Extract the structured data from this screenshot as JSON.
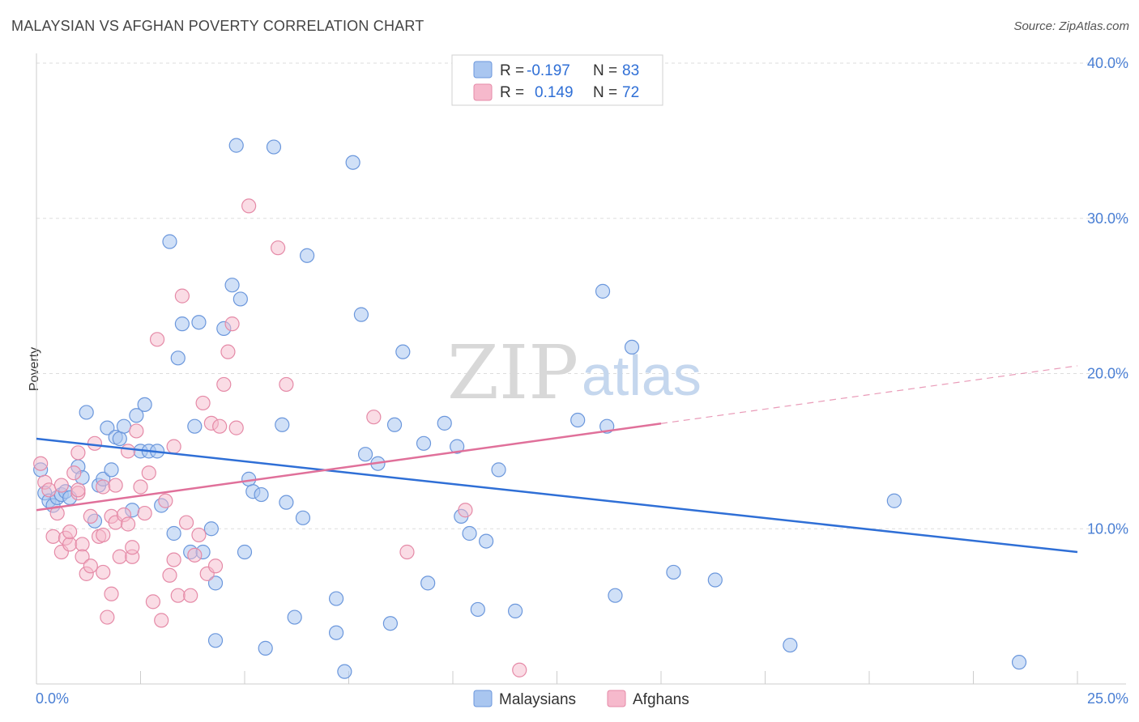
{
  "title": "MALAYSIAN VS AFGHAN POVERTY CORRELATION CHART",
  "source": "Source: ZipAtlas.com",
  "watermark": {
    "zip": "ZIP",
    "atlas": "atlas"
  },
  "colors": {
    "malaysians_fill": "#a9c6f0",
    "malaysians_stroke": "#6b97dc",
    "malaysians_line": "#2f6fd6",
    "afghans_fill": "#f6b9cc",
    "afghans_stroke": "#e58aa7",
    "afghans_line": "#e0709a",
    "grid": "#dddddd",
    "axis_text": "#4a7fd4"
  },
  "legend": {
    "rows": [
      {
        "r_label": "R =",
        "r_value": "-0.197",
        "n_label": "N =",
        "n_value": "83"
      },
      {
        "r_label": "R =",
        "r_value": "0.149",
        "n_label": "N =",
        "n_value": "72"
      }
    ]
  },
  "chart_data": {
    "type": "scatter",
    "title": "MALAYSIAN VS AFGHAN POVERTY CORRELATION CHART",
    "xlabel": "",
    "ylabel": "Poverty",
    "xlim": [
      0,
      25
    ],
    "ylim": [
      0,
      40
    ],
    "x_tick_labels": [
      "0.0%",
      "25.0%"
    ],
    "y_tick_labels": [
      "10.0%",
      "20.0%",
      "30.0%",
      "40.0%"
    ],
    "y_tick_values": [
      10,
      20,
      30,
      40
    ],
    "grid": true,
    "legend_position": "top-center",
    "series": [
      {
        "name": "Malaysians",
        "r": -0.197,
        "n": 83,
        "trend": {
          "x": [
            0,
            25
          ],
          "y": [
            15.8,
            8.5
          ],
          "dashed_from": null
        },
        "points": [
          [
            0.1,
            13.8
          ],
          [
            0.2,
            12.3
          ],
          [
            0.3,
            11.8
          ],
          [
            0.4,
            11.5
          ],
          [
            0.5,
            12.0
          ],
          [
            0.6,
            12.2
          ],
          [
            0.7,
            12.4
          ],
          [
            0.8,
            12.0
          ],
          [
            1.0,
            14.0
          ],
          [
            1.1,
            13.3
          ],
          [
            1.2,
            17.5
          ],
          [
            1.4,
            10.5
          ],
          [
            1.5,
            12.8
          ],
          [
            1.6,
            13.2
          ],
          [
            1.7,
            16.5
          ],
          [
            1.8,
            13.8
          ],
          [
            1.9,
            15.9
          ],
          [
            2.0,
            15.8
          ],
          [
            2.1,
            16.6
          ],
          [
            2.3,
            11.2
          ],
          [
            2.4,
            17.3
          ],
          [
            2.5,
            15.0
          ],
          [
            2.6,
            18.0
          ],
          [
            2.7,
            15.0
          ],
          [
            2.9,
            15.0
          ],
          [
            3.0,
            11.5
          ],
          [
            3.2,
            28.5
          ],
          [
            3.3,
            9.7
          ],
          [
            3.4,
            21.0
          ],
          [
            3.5,
            23.2
          ],
          [
            3.7,
            8.5
          ],
          [
            3.8,
            16.6
          ],
          [
            3.9,
            23.3
          ],
          [
            4.0,
            8.5
          ],
          [
            4.2,
            10.0
          ],
          [
            4.3,
            6.5
          ],
          [
            4.3,
            2.8
          ],
          [
            4.5,
            22.9
          ],
          [
            4.7,
            25.7
          ],
          [
            4.8,
            34.7
          ],
          [
            4.9,
            24.8
          ],
          [
            5.0,
            8.5
          ],
          [
            5.1,
            13.2
          ],
          [
            5.2,
            12.4
          ],
          [
            5.4,
            12.2
          ],
          [
            5.5,
            2.3
          ],
          [
            5.7,
            34.6
          ],
          [
            5.9,
            16.7
          ],
          [
            6.0,
            11.7
          ],
          [
            6.2,
            4.3
          ],
          [
            6.4,
            10.7
          ],
          [
            6.5,
            27.6
          ],
          [
            7.2,
            5.5
          ],
          [
            7.2,
            3.3
          ],
          [
            7.4,
            0.8
          ],
          [
            7.6,
            33.6
          ],
          [
            7.8,
            23.8
          ],
          [
            7.9,
            14.8
          ],
          [
            8.2,
            14.2
          ],
          [
            8.5,
            3.9
          ],
          [
            8.6,
            16.7
          ],
          [
            8.8,
            21.4
          ],
          [
            9.3,
            15.5
          ],
          [
            9.4,
            6.5
          ],
          [
            9.8,
            16.8
          ],
          [
            10.1,
            15.3
          ],
          [
            10.2,
            10.8
          ],
          [
            10.4,
            9.7
          ],
          [
            10.6,
            4.8
          ],
          [
            10.8,
            9.2
          ],
          [
            11.1,
            13.8
          ],
          [
            11.5,
            4.7
          ],
          [
            13.0,
            17.0
          ],
          [
            13.6,
            25.3
          ],
          [
            13.7,
            16.6
          ],
          [
            13.9,
            5.7
          ],
          [
            14.3,
            21.7
          ],
          [
            15.3,
            7.2
          ],
          [
            16.3,
            6.7
          ],
          [
            18.1,
            2.5
          ],
          [
            20.6,
            11.8
          ],
          [
            23.6,
            1.4
          ]
        ]
      },
      {
        "name": "Afghans",
        "r": 0.149,
        "n": 72,
        "trend": {
          "x": [
            0,
            25
          ],
          "y": [
            11.2,
            20.5
          ],
          "dashed_from": 15
        },
        "points": [
          [
            0.1,
            14.2
          ],
          [
            0.2,
            13.0
          ],
          [
            0.3,
            12.5
          ],
          [
            0.4,
            9.5
          ],
          [
            0.5,
            11.0
          ],
          [
            0.6,
            12.8
          ],
          [
            0.6,
            8.5
          ],
          [
            0.7,
            9.4
          ],
          [
            0.8,
            9.0
          ],
          [
            0.8,
            9.8
          ],
          [
            0.9,
            13.6
          ],
          [
            1.0,
            14.9
          ],
          [
            1.0,
            12.3
          ],
          [
            1.0,
            12.5
          ],
          [
            1.1,
            9.0
          ],
          [
            1.1,
            8.2
          ],
          [
            1.2,
            7.1
          ],
          [
            1.3,
            10.8
          ],
          [
            1.3,
            7.6
          ],
          [
            1.4,
            15.5
          ],
          [
            1.5,
            9.5
          ],
          [
            1.6,
            12.7
          ],
          [
            1.6,
            9.6
          ],
          [
            1.6,
            7.2
          ],
          [
            1.7,
            4.3
          ],
          [
            1.8,
            10.8
          ],
          [
            1.8,
            5.8
          ],
          [
            1.9,
            12.8
          ],
          [
            1.9,
            10.4
          ],
          [
            2.0,
            8.2
          ],
          [
            2.1,
            10.9
          ],
          [
            2.2,
            10.3
          ],
          [
            2.2,
            15.0
          ],
          [
            2.3,
            8.2
          ],
          [
            2.3,
            8.8
          ],
          [
            2.4,
            16.3
          ],
          [
            2.5,
            12.7
          ],
          [
            2.6,
            11.0
          ],
          [
            2.7,
            13.6
          ],
          [
            2.8,
            5.3
          ],
          [
            2.9,
            22.2
          ],
          [
            3.0,
            4.1
          ],
          [
            3.1,
            11.8
          ],
          [
            3.2,
            7.0
          ],
          [
            3.3,
            15.3
          ],
          [
            3.3,
            8.0
          ],
          [
            3.4,
            5.7
          ],
          [
            3.5,
            25.0
          ],
          [
            3.6,
            10.4
          ],
          [
            3.7,
            5.7
          ],
          [
            3.8,
            8.3
          ],
          [
            3.9,
            9.6
          ],
          [
            4.0,
            18.1
          ],
          [
            4.1,
            7.1
          ],
          [
            4.2,
            16.8
          ],
          [
            4.3,
            7.6
          ],
          [
            4.4,
            16.6
          ],
          [
            4.5,
            19.3
          ],
          [
            4.6,
            21.4
          ],
          [
            4.7,
            23.2
          ],
          [
            4.8,
            16.5
          ],
          [
            5.1,
            30.8
          ],
          [
            5.8,
            28.1
          ],
          [
            6.0,
            19.3
          ],
          [
            8.1,
            17.2
          ],
          [
            8.9,
            8.5
          ],
          [
            10.3,
            11.2
          ],
          [
            11.6,
            0.9
          ]
        ]
      }
    ]
  }
}
